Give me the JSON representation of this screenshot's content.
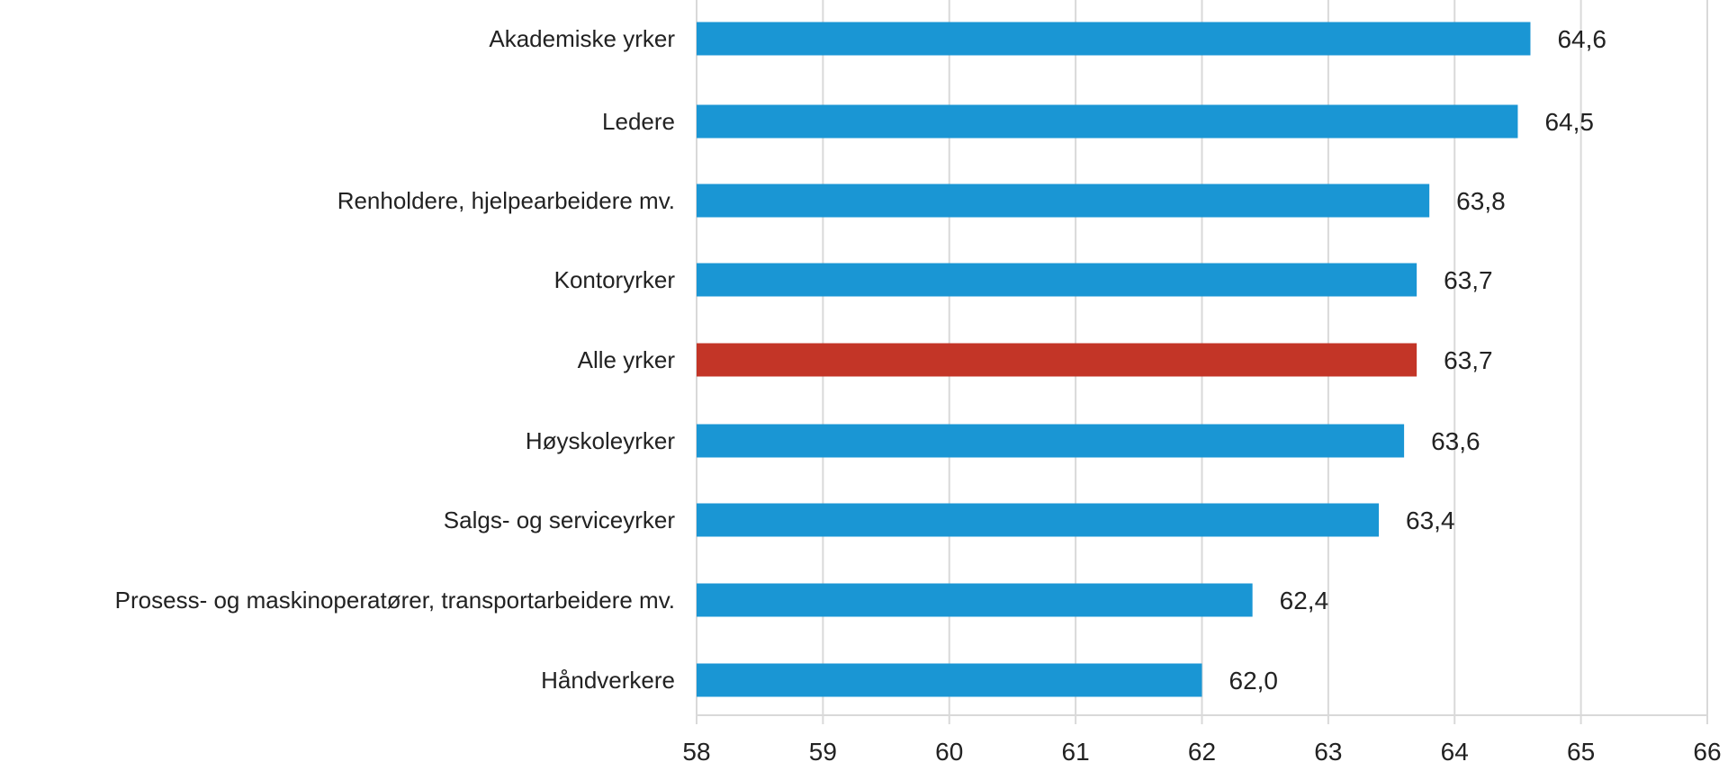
{
  "chart_data": {
    "type": "bar",
    "orientation": "horizontal",
    "categories": [
      "Akademiske yrker",
      "Ledere",
      "Renholdere, hjelpearbeidere mv.",
      "Kontoryrker",
      "Alle yrker",
      "Høyskoleyrker",
      "Salgs- og serviceyrker",
      "Prosess- og maskinoperatører, transportarbeidere mv.",
      "Håndverkere"
    ],
    "values": [
      64.6,
      64.5,
      63.8,
      63.7,
      63.7,
      63.6,
      63.4,
      62.4,
      62.0
    ],
    "value_labels": [
      "64,6",
      "64,5",
      "63,8",
      "63,7",
      "63,7",
      "63,6",
      "63,4",
      "62,4",
      "62,0"
    ],
    "highlight": [
      false,
      false,
      false,
      false,
      true,
      false,
      false,
      false,
      false
    ],
    "xlim": [
      58,
      66
    ],
    "xticks": [
      "58",
      "59",
      "60",
      "61",
      "62",
      "63",
      "64",
      "65",
      "66"
    ],
    "grid": true,
    "title": "",
    "xlabel": "",
    "ylabel": "",
    "colors": {
      "bar": "#1a96d4",
      "highlight": "#c33527",
      "grid": "#d9d9d9"
    }
  }
}
